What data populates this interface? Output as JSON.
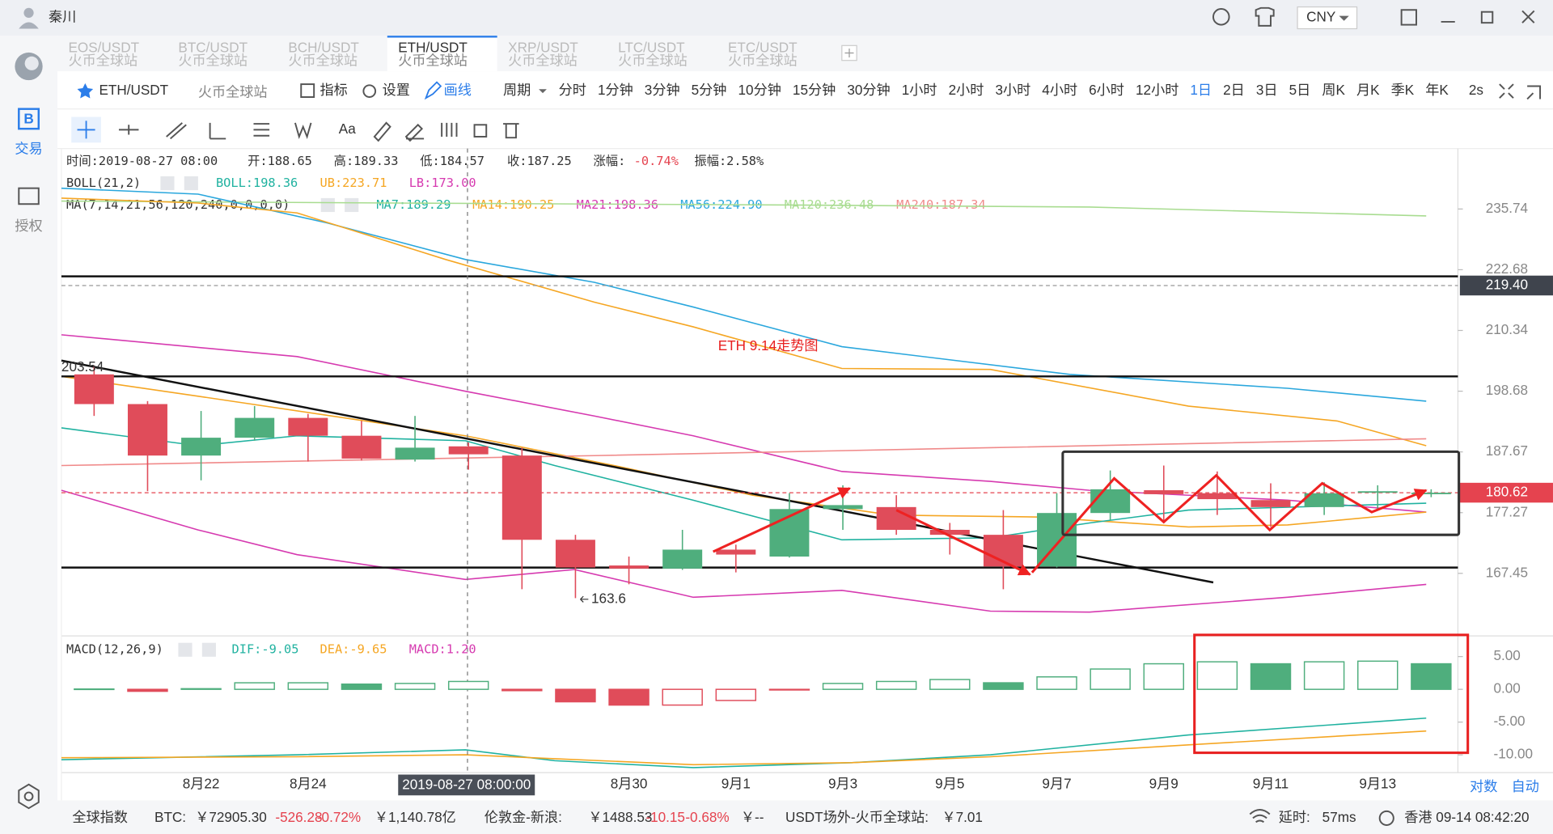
{
  "titlebar": {
    "user": "秦川",
    "currency": "CNY"
  },
  "sidebar": {
    "items": [
      "交易",
      "授权"
    ]
  },
  "tabs": [
    {
      "pair": "EOS/USDT",
      "exchange": "火币全球站"
    },
    {
      "pair": "BTC/USDT",
      "exchange": "火币全球站"
    },
    {
      "pair": "BCH/USDT",
      "exchange": "火币全球站"
    },
    {
      "pair": "ETH/USDT",
      "exchange": "火币全球站"
    },
    {
      "pair": "XRP/USDT",
      "exchange": "火币全球站"
    },
    {
      "pair": "LTC/USDT",
      "exchange": "火币全球站"
    },
    {
      "pair": "ETC/USDT",
      "exchange": "火币全球站"
    }
  ],
  "active_tab": "ETH/USDT",
  "toolbar": {
    "symbol": "ETH/USDT",
    "exchange": "火币全球站",
    "buttons": [
      "指标",
      "设置",
      "画线"
    ],
    "period": "周期",
    "intervals": [
      "分时",
      "1分钟",
      "3分钟",
      "5分钟",
      "10分钟",
      "15分钟",
      "30分钟",
      "1小时",
      "2小时",
      "3小时",
      "4小时",
      "6小时",
      "12小时",
      "1日",
      "2日",
      "3日",
      "5日",
      "周K",
      "月K",
      "季K",
      "年K"
    ],
    "active_interval": "1日",
    "refresh": "2s"
  },
  "drawing_tools": {
    "text_tool": "Aa"
  },
  "info": {
    "time": "时间:2019-08-27 08:00",
    "open": "开:188.65",
    "high": "高:189.33",
    "low": "低:184.57",
    "close": "收:187.25",
    "change_label": "涨幅:",
    "change": "-0.74%",
    "amplitude": "振幅:2.58%"
  },
  "boll": {
    "name": "BOLL(21,2)",
    "values": [
      "BOLL:198.36",
      "UB:223.71",
      "LB:173.00"
    ]
  },
  "ma": {
    "name": "MA(7,14,21,56,120,240,0,0,0,0)",
    "values": [
      "MA7:189.29",
      "MA14:190.25",
      "MA21:198.36",
      "MA56:224.90",
      "MA120:236.48",
      "MA240:187.34"
    ]
  },
  "annotation": "ETH  9.14走势图",
  "chart": {
    "type": "candlestick",
    "log": true,
    "ylim": [
      157.9,
      249.5
    ],
    "yticks": [
      235.74,
      222.68,
      210.34,
      198.68,
      187.67,
      177.27,
      167.45
    ],
    "price_marks": [
      {
        "value": 219.4,
        "label": "219.40"
      },
      180.62
    ],
    "categories": [
      null,
      null,
      "8月22",
      null,
      "8月24",
      null,
      null,
      null,
      null,
      null,
      "8月30",
      null,
      "9月1",
      null,
      "9月3",
      null,
      "9月5",
      null,
      "9月7",
      null,
      "9月9",
      null,
      "9月11",
      null,
      "9月13",
      null
    ],
    "candles": [
      {
        "open": 201.84,
        "high": 203.54,
        "low": 194.12,
        "close": 196.29
      },
      {
        "open": 196.29,
        "high": 196.84,
        "low": 180.87,
        "close": 187.03
      },
      {
        "open": 187.03,
        "high": 195.02,
        "low": 182.73,
        "close": 190.19
      },
      {
        "open": 190.19,
        "high": 195.93,
        "low": 189.66,
        "close": 193.76
      },
      {
        "open": 193.76,
        "high": 194.48,
        "low": 185.98,
        "close": 190.54
      },
      {
        "open": 190.54,
        "high": 193.22,
        "low": 186.15,
        "close": 186.5
      },
      {
        "open": 186.33,
        "high": 194.12,
        "low": 185.98,
        "close": 188.42
      },
      {
        "open": 188.65,
        "high": 189.33,
        "low": 184.57,
        "close": 187.25
      },
      {
        "open": 187.03,
        "high": 188.42,
        "low": 164.97,
        "close": 172.81
      },
      {
        "open": 172.81,
        "high": 173.62,
        "low": 163.6,
        "close": 168.38
      },
      {
        "open": 168.69,
        "high": 170.11,
        "low": 165.74,
        "close": 168.2
      },
      {
        "open": 168.2,
        "high": 174.43,
        "low": 168.0,
        "close": 171.22
      },
      {
        "open": 171.22,
        "high": 172.02,
        "low": 167.6,
        "close": 170.43
      },
      {
        "open": 170.11,
        "high": 180.53,
        "low": 169.95,
        "close": 177.87
      },
      {
        "open": 177.87,
        "high": 181.88,
        "low": 174.43,
        "close": 178.53
      },
      {
        "open": 178.2,
        "high": 180.2,
        "low": 173.62,
        "close": 174.43
      },
      {
        "open": 174.43,
        "high": 175.57,
        "low": 170.43,
        "close": 173.62
      },
      {
        "open": 173.62,
        "high": 177.7,
        "low": 164.97,
        "close": 168.53
      },
      {
        "open": 168.53,
        "high": 180.53,
        "low": 168.38,
        "close": 177.21
      },
      {
        "open": 177.21,
        "high": 184.43,
        "low": 176.06,
        "close": 181.2
      },
      {
        "open": 181.04,
        "high": 185.29,
        "low": 175.57,
        "close": 180.37
      },
      {
        "open": 180.53,
        "high": 184.26,
        "low": 176.88,
        "close": 179.53
      },
      {
        "open": 179.37,
        "high": 182.22,
        "low": 174.92,
        "close": 178.2
      },
      {
        "open": 178.2,
        "high": 182.39,
        "low": 176.88,
        "close": 180.53
      },
      {
        "open": 180.7,
        "high": 181.88,
        "low": 177.7,
        "close": 180.87
      },
      {
        "open": 180.37,
        "high": 181.2,
        "low": 179.86,
        "close": 180.62
      }
    ],
    "crosshair": "2019-08-27 08:00:00"
  },
  "macd": {
    "name": "MACD(12,26,9)",
    "values": [
      "DIF:-9.05",
      "DEA:-9.65",
      "MACD:1.20"
    ],
    "ylim": [
      -12.4,
      7.7
    ],
    "yticks": [
      {
        "value": 5,
        "label": "5.00"
      },
      {
        "value": 0,
        "label": "0.00"
      },
      {
        "value": -5,
        "label": "-5.00"
      },
      {
        "value": -10,
        "label": "-10.00"
      }
    ],
    "bars": [
      0.05,
      -0.3,
      0.1,
      1.0,
      1.0,
      0.8,
      0.9,
      1.2,
      -0.2,
      -1.9,
      -2.4,
      -2.4,
      -1.7,
      -0.1,
      0.9,
      1.2,
      1.5,
      1.0,
      1.9,
      3.1,
      3.9,
      4.2,
      3.9,
      4.2,
      4.3,
      3.9
    ],
    "hollow": [
      false,
      false,
      false,
      true,
      true,
      false,
      true,
      true,
      false,
      false,
      false,
      true,
      true,
      false,
      true,
      true,
      true,
      false,
      true,
      true,
      true,
      true,
      false,
      true,
      true,
      false
    ]
  },
  "axis_modes": [
    "对数",
    "自动"
  ],
  "statusbar": {
    "index_label": "全球指数",
    "btc_label": "BTC:",
    "btc_price": "￥72905.30",
    "btc_change": "-526.28",
    "btc_pct": "-0.72%",
    "btc_cap": "￥1,140.78亿",
    "gold_label": "伦敦金-新浪:",
    "gold_price": "￥1488.53",
    "gold_change": "-10.15",
    "gold_pct": "-0.68%",
    "gold_cny": "￥--",
    "usdt_label": "USDT场外-火币全球站:",
    "usdt_price": "￥7.01",
    "latency_label": "延时:",
    "latency": "57ms",
    "clock": "香港 09-14 08:42:20"
  }
}
